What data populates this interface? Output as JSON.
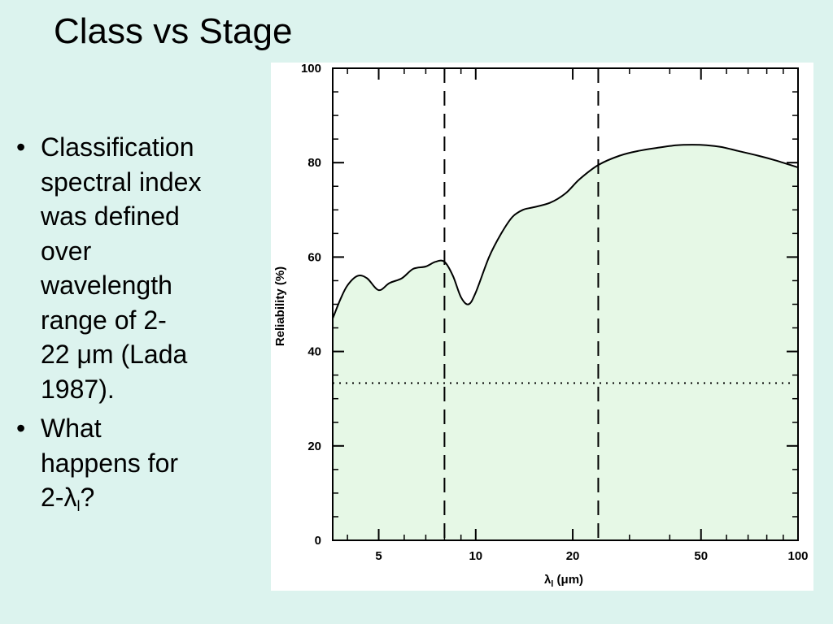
{
  "slide": {
    "title": "Class vs Stage",
    "bullets": [
      {
        "lines": [
          "Classification",
          "spectral index",
          "was defined",
          "over",
          "wavelength",
          "range of  2-",
          "22 μm (Lada",
          "1987)."
        ]
      },
      {
        "lines": [
          "What",
          "happens for"
        ],
        "last_prefix": "2-λ",
        "last_sub": "l",
        "last_suffix": "?"
      }
    ],
    "bullet_marker": "•"
  },
  "chart_data": {
    "type": "area",
    "xlabel": "λl (μm)",
    "ylabel": "Reliability (%)",
    "xscale": "log",
    "xlim": [
      3.6,
      100
    ],
    "ylim": [
      0,
      100
    ],
    "x_ticks": [
      5,
      10,
      20,
      50,
      100
    ],
    "y_ticks": [
      0,
      20,
      40,
      60,
      80,
      100
    ],
    "series": [
      {
        "x": [
          3.6,
          3.8,
          4.0,
          4.3,
          4.6,
          5.0,
          5.4,
          5.9,
          6.4,
          7.0,
          7.5,
          8.0,
          8.5,
          9.0,
          9.5,
          10.0,
          11,
          12,
          13,
          14,
          15,
          17,
          19,
          21,
          24,
          28,
          32,
          37,
          42,
          47,
          52,
          58,
          65,
          75,
          85,
          100
        ],
        "y": [
          47,
          51,
          54,
          56,
          55.5,
          53,
          54.5,
          55.5,
          57.5,
          58,
          59,
          59,
          56,
          51.5,
          50,
          52.5,
          60,
          65,
          68.5,
          70,
          70.5,
          71.5,
          73.5,
          76.5,
          79.5,
          81.5,
          82.5,
          83.2,
          83.7,
          83.8,
          83.7,
          83.3,
          82.5,
          81.5,
          80.5,
          79
        ]
      }
    ],
    "vlines": [
      8,
      24
    ],
    "hline": 33.3,
    "fill_color": "#e6f8e6",
    "grid": false
  }
}
